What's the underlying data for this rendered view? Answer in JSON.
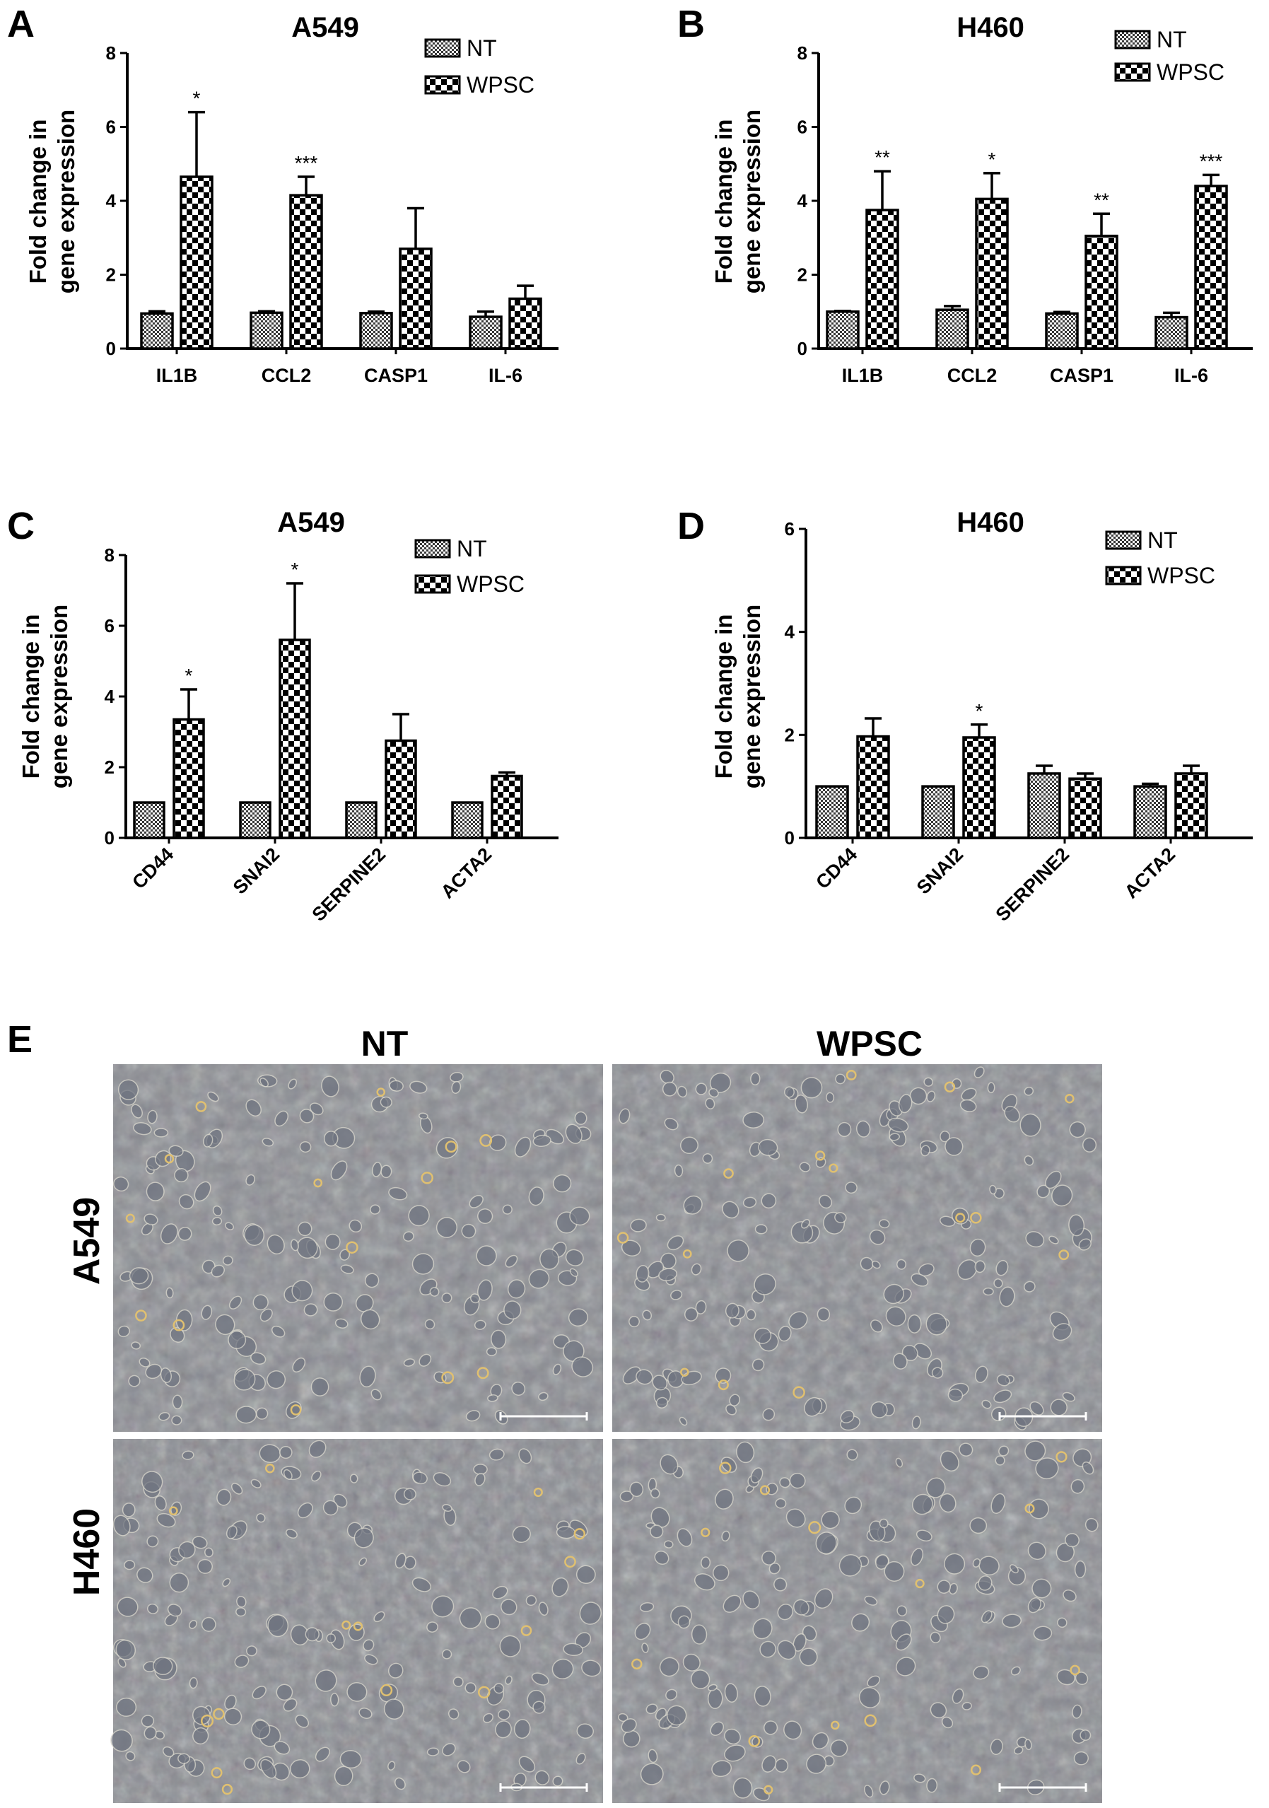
{
  "chart_data": [
    {
      "panel": "A",
      "type": "bar",
      "title": "A549",
      "ylabel": [
        "Fold change in",
        "gene expression"
      ],
      "ylim": [
        0,
        8
      ],
      "yticks": [
        0,
        2,
        4,
        6,
        8
      ],
      "categories": [
        "IL1B",
        "CCL2",
        "CASP1",
        "IL-6"
      ],
      "series": [
        {
          "name": "NT",
          "values": [
            0.95,
            0.97,
            0.96,
            0.86
          ],
          "errors": [
            0.06,
            0.04,
            0.04,
            0.14
          ]
        },
        {
          "name": "WPSC",
          "values": [
            4.65,
            4.15,
            2.7,
            1.35
          ],
          "errors": [
            1.75,
            0.5,
            1.1,
            0.35
          ]
        }
      ],
      "significance": [
        "*",
        "***",
        "",
        ""
      ],
      "legend": "top-right",
      "rotated_labels": false
    },
    {
      "panel": "B",
      "type": "bar",
      "title": "H460",
      "ylabel": [
        "Fold change in",
        "gene expression"
      ],
      "ylim": [
        0,
        8
      ],
      "yticks": [
        0,
        2,
        4,
        6,
        8
      ],
      "categories": [
        "IL1B",
        "CCL2",
        "CASP1",
        "IL-6"
      ],
      "series": [
        {
          "name": "NT",
          "values": [
            1.0,
            1.05,
            0.95,
            0.85
          ],
          "errors": [
            0.02,
            0.1,
            0.04,
            0.12
          ]
        },
        {
          "name": "WPSC",
          "values": [
            3.75,
            4.05,
            3.05,
            4.4
          ],
          "errors": [
            1.05,
            0.7,
            0.6,
            0.3
          ]
        }
      ],
      "significance": [
        "**",
        "*",
        "**",
        "***"
      ],
      "legend": "top-right",
      "rotated_labels": false
    },
    {
      "panel": "C",
      "type": "bar",
      "title": "A549",
      "ylabel": [
        "Fold change in",
        "gene expression"
      ],
      "ylim": [
        0,
        8
      ],
      "yticks": [
        0,
        2,
        4,
        6,
        8
      ],
      "categories": [
        "CD44",
        "SNAI2",
        "SERPINE2",
        "ACTA2"
      ],
      "series": [
        {
          "name": "NT",
          "values": [
            1.0,
            1.0,
            1.0,
            1.0
          ],
          "errors": [
            0,
            0,
            0,
            0
          ]
        },
        {
          "name": "WPSC",
          "values": [
            3.35,
            5.6,
            2.75,
            1.75
          ],
          "errors": [
            0.85,
            1.6,
            0.75,
            0.1
          ]
        }
      ],
      "significance": [
        "*",
        "*",
        "",
        ""
      ],
      "legend": "top-right",
      "rotated_labels": true
    },
    {
      "panel": "D",
      "type": "bar",
      "title": "H460",
      "ylabel": [
        "Fold change in",
        "gene expression"
      ],
      "ylim": [
        0,
        6
      ],
      "yticks": [
        0,
        2,
        4,
        6
      ],
      "categories": [
        "CD44",
        "SNAI2",
        "SERPINE2",
        "ACTA2"
      ],
      "series": [
        {
          "name": "NT",
          "values": [
            1.0,
            1.0,
            1.25,
            1.0
          ],
          "errors": [
            0,
            0,
            0.15,
            0.05
          ]
        },
        {
          "name": "WPSC",
          "values": [
            1.97,
            1.95,
            1.15,
            1.25
          ],
          "errors": [
            0.35,
            0.25,
            0.1,
            0.15
          ]
        }
      ],
      "significance": [
        "",
        "*",
        "",
        ""
      ],
      "legend": "top-right",
      "rotated_labels": true
    }
  ],
  "panel_e": {
    "letter": "E",
    "columns": [
      "NT",
      "WPSC"
    ],
    "rows": [
      "A549",
      "H460"
    ]
  },
  "colors": {
    "background": "#ffffff",
    "ink": "#000000",
    "photo_base": "#8a8c92"
  }
}
